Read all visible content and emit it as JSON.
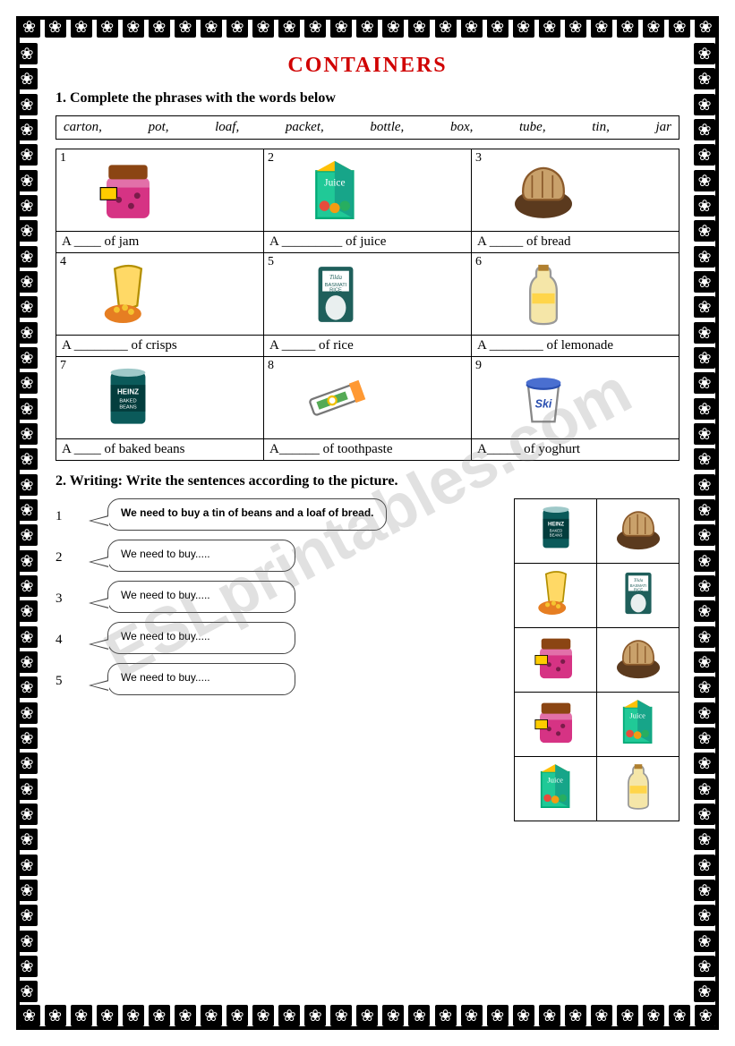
{
  "title": "CONTAINERS",
  "instruction1": "1.  Complete the phrases with the words below",
  "wordbox": [
    "carton,",
    "pot,",
    "loaf,",
    "packet,",
    "bottle,",
    "box,",
    "tube,",
    "tin,",
    "jar"
  ],
  "cells": [
    {
      "num": "1",
      "caption": "A ____ of jam",
      "icon": "jam"
    },
    {
      "num": "2",
      "caption": "A _________ of juice",
      "icon": "juice"
    },
    {
      "num": "3",
      "caption": "A _____ of bread",
      "icon": "bread"
    },
    {
      "num": "4",
      "caption": "A ________ of crisps",
      "icon": "crisps"
    },
    {
      "num": "5",
      "caption": "A _____ of rice",
      "icon": "rice"
    },
    {
      "num": "6",
      "caption": "A ________ of lemonade",
      "icon": "lemonade"
    },
    {
      "num": "7",
      "caption": "A ____ of baked beans",
      "icon": "beans"
    },
    {
      "num": "8",
      "caption": "A______ of toothpaste",
      "icon": "toothpaste"
    },
    {
      "num": "9",
      "caption": "A_____ of yoghurt",
      "icon": "yoghurt"
    }
  ],
  "instruction2": "2. Writing: Write the sentences according to the picture.",
  "bubbles": [
    {
      "num": "1",
      "text": "We need to buy a tin of beans and a loaf of bread.",
      "first": true
    },
    {
      "num": "2",
      "text": "We need to buy.....",
      "first": false
    },
    {
      "num": "3",
      "text": "We need to buy.....",
      "first": false
    },
    {
      "num": "4",
      "text": "We need to buy.....",
      "first": false
    },
    {
      "num": "5",
      "text": "We need to buy.....",
      "first": false
    }
  ],
  "pics_rows": [
    [
      "beans",
      "bread"
    ],
    [
      "crisps",
      "rice"
    ],
    [
      "jam",
      "bread"
    ],
    [
      "jam",
      "juice"
    ],
    [
      "juice",
      "lemonade"
    ]
  ],
  "watermark": "ESLprintables.com",
  "icons": {
    "jam": {
      "body": "#d63384",
      "lid": "#8b4513",
      "tag": "#ffcc00"
    },
    "juice": {
      "body": "#20c997",
      "top": "#ffc107",
      "label": "Juice"
    },
    "bread": {
      "body": "#c9a16b",
      "crust": "#8b5a2b",
      "basket": "#5b3a1e"
    },
    "crisps": {
      "body": "#ffd966",
      "bowl": "#e67e22"
    },
    "rice": {
      "body": "#1f5f5b",
      "label": "#ffffff",
      "text1": "Tilda",
      "text2": "BASMATI",
      "text3": "RICE"
    },
    "lemonade": {
      "body": "#f5e6a8",
      "cap": "#b08030",
      "label": "#ffd54a"
    },
    "beans": {
      "body": "#0b5a5a",
      "label": "#0b5a5a",
      "text1": "HEINZ",
      "text2": "BAKED",
      "text3": "BEANS"
    },
    "toothpaste": {
      "body": "#ffffff",
      "cap": "#ff9933",
      "stripe": "#55aa55"
    },
    "yoghurt": {
      "body": "#ffffff",
      "lid": "#2a4fb0",
      "brand": "Ski"
    }
  }
}
